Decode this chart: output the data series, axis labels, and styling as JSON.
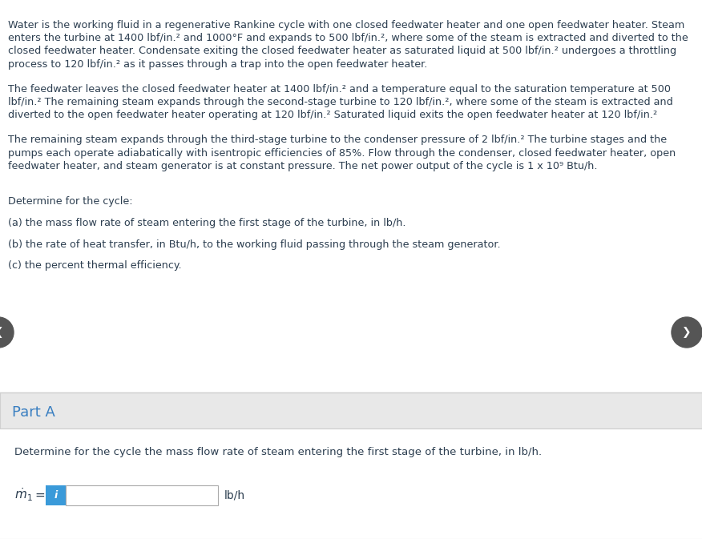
{
  "bg_color": "#ffffff",
  "gray_bg": "#f0f0f0",
  "part_a_bg": "#f5f5f5",
  "part_a_color": "#3a7fc1",
  "text_color": "#2c3e50",
  "blue_btn_color": "#3a9ad9",
  "nav_arrow_bg": "#555555",
  "divider_color": "#d0d0d0",
  "border_color": "#cccccc",
  "input_border": "#aaaaaa",
  "paragraph1_lines": [
    "Water is the working fluid in a regenerative Rankine cycle with one closed feedwater heater and one open feedwater heater. Steam",
    "enters the turbine at 1400 lbf/in.² and 1000°F and expands to 500 lbf/in.², where some of the steam is extracted and diverted to the",
    "closed feedwater heater. Condensate exiting the closed feedwater heater as saturated liquid at 500 lbf/in.² undergoes a throttling",
    "process to 120 lbf/in.² as it passes through a trap into the open feedwater heater."
  ],
  "paragraph2_lines": [
    "The feedwater leaves the closed feedwater heater at 1400 lbf/in.² and a temperature equal to the saturation temperature at 500",
    "lbf/in.² The remaining steam expands through the second-stage turbine to 120 lbf/in.², where some of the steam is extracted and",
    "diverted to the open feedwater heater operating at 120 lbf/in.² Saturated liquid exits the open feedwater heater at 120 lbf/in.²"
  ],
  "paragraph3_lines": [
    "The remaining steam expands through the third-stage turbine to the condenser pressure of 2 lbf/in.² The turbine stages and the",
    "pumps each operate adiabatically with isentropic efficiencies of 85%. Flow through the condenser, closed feedwater heater, open",
    "feedwater heater, and steam generator is at constant pressure. The net power output of the cycle is 1 x 10⁹ Btu/h."
  ],
  "determine_text": "Determine for the cycle:",
  "part_a_text": "(a) the mass flow rate of steam entering the first stage of the turbine, in lb/h.",
  "part_b_text": "(b) the rate of heat transfer, in Btu/h, to the working fluid passing through the steam generator.",
  "part_c_text": "(c) the percent thermal efficiency.",
  "part_a_label": "Part A",
  "part_a_question": "Determine for the cycle the mass flow rate of steam entering the first stage of the turbine, in lb/h.",
  "unit_label": "lb/h"
}
